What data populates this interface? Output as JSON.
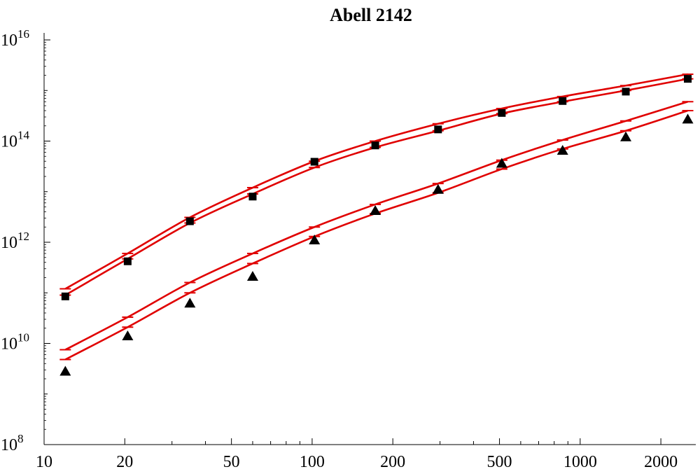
{
  "chart_data": {
    "type": "scatter",
    "title": "Abell 2142",
    "xlabel": "",
    "ylabel": "",
    "x_scale": "log",
    "y_scale": "log",
    "xlim": [
      10,
      2700
    ],
    "ylim": [
      100000000.0,
      1e+16
    ],
    "x_ticks": [
      {
        "value": 10,
        "label": "10"
      },
      {
        "value": 20,
        "label": "20"
      },
      {
        "value": 50,
        "label": "50"
      },
      {
        "value": 100,
        "label": "100"
      },
      {
        "value": 200,
        "label": "200"
      },
      {
        "value": 500,
        "label": "500"
      },
      {
        "value": 1000,
        "label": "1000"
      },
      {
        "value": 2000,
        "label": "2000"
      }
    ],
    "y_ticks": [
      {
        "value": 100000000.0,
        "base": "10",
        "exp": "8"
      },
      {
        "value": 10000000000.0,
        "base": "10",
        "exp": "10"
      },
      {
        "value": 1000000000000.0,
        "base": "10",
        "exp": "12"
      },
      {
        "value": 100000000000000.0,
        "base": "10",
        "exp": "14"
      },
      {
        "value": 1e+16,
        "base": "10",
        "exp": "16"
      }
    ],
    "grid": false,
    "legend": "none",
    "series": [
      {
        "marker": "square",
        "color": "#000000",
        "x": [
          12,
          20.5,
          35,
          60,
          102,
          172,
          295,
          510,
          860,
          1480,
          2520
        ],
        "y": [
          85000000000.0,
          420000000000.0,
          2600000000000.0,
          8000000000000.0,
          39000000000000.0,
          82000000000000.0,
          170000000000000.0,
          360000000000000.0,
          620000000000000.0,
          950000000000000.0,
          1700000000000000.0
        ]
      },
      {
        "marker": "triangle",
        "color": "#000000",
        "x": [
          12,
          20.5,
          35,
          60,
          102,
          172,
          295,
          510,
          860,
          1480,
          2520
        ],
        "y": [
          2800000000.0,
          14000000000.0,
          62000000000.0,
          210000000000.0,
          1100000000000.0,
          4200000000000.0,
          11000000000000.0,
          36000000000000.0,
          65000000000000.0,
          120000000000000.0,
          270000000000000.0
        ]
      },
      {
        "kind": "line",
        "color": "#e00000",
        "x": [
          12,
          20.5,
          35,
          60,
          102,
          172,
          295,
          510,
          860,
          1480,
          2520
        ],
        "y": [
          120000000000.0,
          600000000000.0,
          3100000000000.0,
          12000000000000.0,
          40000000000000.0,
          100000000000000.0,
          220000000000000.0,
          440000000000000.0,
          760000000000000.0,
          1250000000000000.0,
          2100000000000000.0
        ]
      },
      {
        "kind": "line",
        "color": "#e00000",
        "x": [
          12,
          20.5,
          35,
          60,
          102,
          172,
          295,
          510,
          860,
          1480,
          2520
        ],
        "y": [
          90000000000.0,
          470000000000.0,
          2400000000000.0,
          9000000000000.0,
          30000000000000.0,
          75000000000000.0,
          160000000000000.0,
          350000000000000.0,
          600000000000000.0,
          1000000000000000.0,
          1700000000000000.0
        ]
      },
      {
        "kind": "line",
        "color": "#e00000",
        "x": [
          12,
          20.5,
          35,
          60,
          102,
          172,
          295,
          510,
          860,
          1480,
          2520
        ],
        "y": [
          7500000000.0,
          33000000000.0,
          160000000000.0,
          600000000000.0,
          2000000000000.0,
          5600000000000.0,
          14500000000000.0,
          42000000000000.0,
          105000000000000.0,
          250000000000000.0,
          600000000000000.0
        ]
      },
      {
        "kind": "line",
        "color": "#e00000",
        "x": [
          12,
          20.5,
          35,
          60,
          102,
          172,
          295,
          510,
          860,
          1480,
          2520
        ],
        "y": [
          4800000000.0,
          21000000000.0,
          100000000000.0,
          380000000000.0,
          1300000000000.0,
          3700000000000.0,
          9500000000000.0,
          28000000000000.0,
          70000000000000.0,
          160000000000000.0,
          400000000000000.0
        ]
      }
    ]
  }
}
